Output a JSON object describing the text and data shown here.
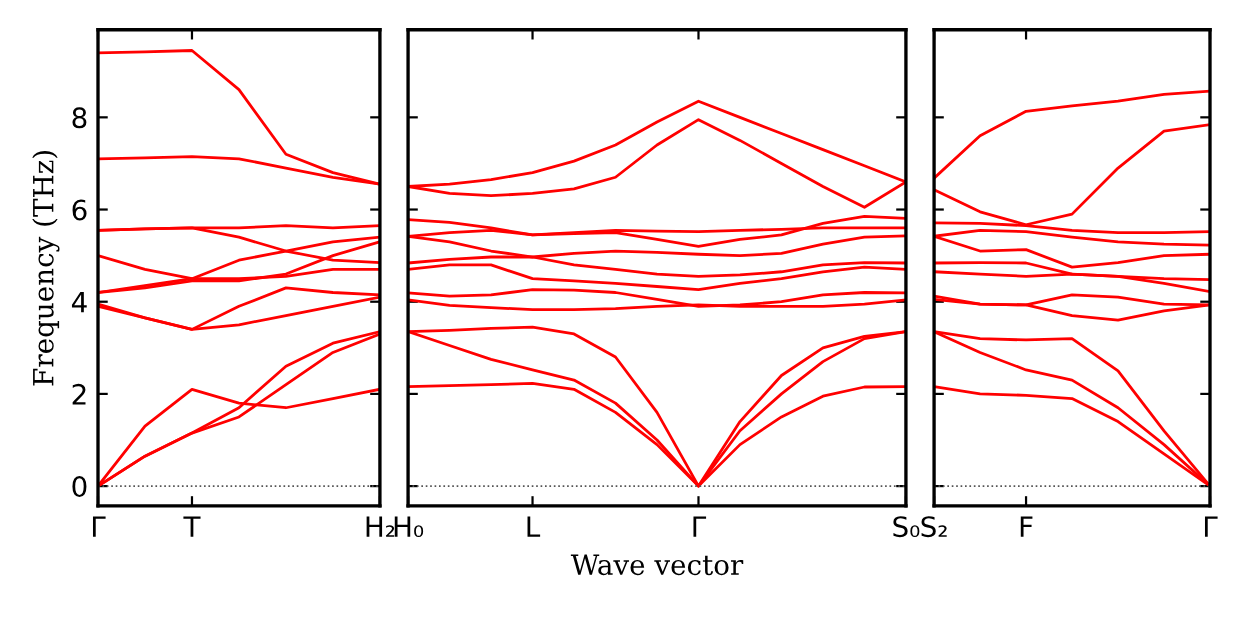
{
  "chart_data": [
    {
      "type": "line",
      "ylabel": "Frequency (THz)",
      "categories": [
        "Γ",
        null,
        "T",
        null,
        null,
        null,
        "H₂"
      ],
      "ylim": [
        -0.43,
        9.9
      ],
      "yticks": [
        0,
        2,
        4,
        6,
        8
      ],
      "ref_lines": [
        {
          "axis": "y",
          "value": 0,
          "color": "#555555",
          "line_style": "dotted"
        }
      ],
      "grid": false,
      "legend": false,
      "marker": "none",
      "line_style": "solid",
      "series": [
        {
          "color": "#ff0000",
          "values": [
            9.4,
            9.42,
            9.45,
            8.6,
            7.2,
            6.8,
            6.55
          ]
        },
        {
          "color": "#ff0000",
          "values": [
            7.1,
            7.12,
            7.15,
            7.1,
            6.9,
            6.7,
            6.55
          ]
        },
        {
          "color": "#ff0000",
          "values": [
            5.55,
            5.58,
            5.6,
            5.6,
            5.65,
            5.6,
            5.65
          ]
        },
        {
          "color": "#ff0000",
          "values": [
            5.55,
            5.58,
            5.6,
            5.4,
            5.1,
            4.9,
            4.85
          ]
        },
        {
          "color": "#ff0000",
          "values": [
            5.0,
            4.7,
            4.5,
            4.5,
            4.55,
            4.7,
            4.7
          ]
        },
        {
          "color": "#ff0000",
          "values": [
            4.2,
            4.35,
            4.5,
            4.9,
            5.1,
            5.3,
            5.4
          ]
        },
        {
          "color": "#ff0000",
          "values": [
            4.2,
            4.3,
            4.45,
            4.45,
            4.6,
            5.0,
            5.3
          ]
        },
        {
          "color": "#ff0000",
          "values": [
            3.95,
            3.65,
            3.4,
            3.9,
            4.3,
            4.2,
            4.15
          ]
        },
        {
          "color": "#ff0000",
          "values": [
            3.9,
            3.65,
            3.4,
            3.5,
            3.7,
            3.9,
            4.1
          ]
        },
        {
          "color": "#ff0000",
          "values": [
            0,
            1.3,
            2.1,
            1.8,
            1.7,
            1.9,
            2.1
          ]
        },
        {
          "color": "#ff0000",
          "values": [
            0,
            0.65,
            1.15,
            1.7,
            2.6,
            3.1,
            3.35
          ]
        },
        {
          "color": "#ff0000",
          "values": [
            0,
            0.65,
            1.15,
            1.5,
            2.2,
            2.9,
            3.3
          ]
        }
      ]
    },
    {
      "type": "line",
      "xlabel": "Wave vector",
      "categories": [
        "H₀",
        null,
        null,
        "L",
        null,
        null,
        null,
        "Γ",
        null,
        null,
        null,
        null,
        "S₀"
      ],
      "ylim": [
        -0.43,
        9.9
      ],
      "yticks": [
        0,
        2,
        4,
        6,
        8
      ],
      "tick_labels": "x",
      "ref_lines": [
        {
          "axis": "y",
          "value": 0,
          "color": "#555555",
          "line_style": "dotted"
        }
      ],
      "grid": false,
      "legend": false,
      "marker": "none",
      "line_style": "solid",
      "series": [
        {
          "color": "#ff0000",
          "values": [
            6.5,
            6.55,
            6.65,
            6.8,
            7.05,
            7.4,
            7.9,
            8.35,
            8.0,
            7.65,
            7.3,
            6.95,
            6.6
          ]
        },
        {
          "color": "#ff0000",
          "values": [
            6.5,
            6.35,
            6.3,
            6.35,
            6.45,
            6.7,
            7.4,
            7.95,
            7.5,
            7.0,
            6.5,
            6.05,
            6.6
          ]
        },
        {
          "color": "#ff0000",
          "values": [
            5.78,
            5.72,
            5.6,
            5.45,
            5.5,
            5.55,
            5.53,
            5.52,
            5.55,
            5.57,
            5.6,
            5.6,
            5.6
          ]
        },
        {
          "color": "#ff0000",
          "values": [
            5.42,
            5.5,
            5.55,
            5.45,
            5.48,
            5.5,
            5.35,
            5.2,
            5.35,
            5.45,
            5.7,
            5.85,
            5.81
          ]
        },
        {
          "color": "#ff0000",
          "values": [
            5.42,
            5.3,
            5.1,
            4.97,
            5.05,
            5.1,
            5.07,
            5.03,
            5.0,
            5.05,
            5.25,
            5.4,
            5.43
          ]
        },
        {
          "color": "#ff0000",
          "values": [
            4.84,
            4.92,
            4.97,
            4.97,
            4.8,
            4.7,
            4.6,
            4.55,
            4.58,
            4.65,
            4.8,
            4.85,
            4.84
          ]
        },
        {
          "color": "#ff0000",
          "values": [
            4.7,
            4.8,
            4.8,
            4.5,
            4.45,
            4.4,
            4.33,
            4.26,
            4.4,
            4.5,
            4.65,
            4.75,
            4.7
          ]
        },
        {
          "color": "#ff0000",
          "values": [
            4.19,
            4.12,
            4.15,
            4.26,
            4.25,
            4.2,
            4.05,
            3.9,
            3.93,
            4.0,
            4.15,
            4.2,
            4.19
          ]
        },
        {
          "color": "#ff0000",
          "values": [
            4.04,
            3.92,
            3.87,
            3.83,
            3.83,
            3.85,
            3.9,
            3.93,
            3.9,
            3.9,
            3.9,
            3.95,
            4.04
          ]
        },
        {
          "color": "#ff0000",
          "values": [
            3.35,
            3.38,
            3.42,
            3.45,
            3.3,
            2.8,
            1.6,
            0,
            1.4,
            2.4,
            3.0,
            3.25,
            3.35
          ]
        },
        {
          "color": "#ff0000",
          "values": [
            3.35,
            3.05,
            2.75,
            2.52,
            2.3,
            1.8,
            1.0,
            0,
            1.2,
            2.0,
            2.7,
            3.2,
            3.35
          ]
        },
        {
          "color": "#ff0000",
          "values": [
            2.16,
            2.18,
            2.2,
            2.23,
            2.1,
            1.6,
            0.9,
            0,
            0.9,
            1.5,
            1.95,
            2.15,
            2.16
          ]
        }
      ]
    },
    {
      "type": "line",
      "categories": [
        "S₂",
        null,
        "F",
        null,
        null,
        null,
        "Γ"
      ],
      "ylim": [
        -0.43,
        9.9
      ],
      "yticks": [
        0,
        2,
        4,
        6,
        8
      ],
      "tick_labels": "x",
      "ref_lines": [
        {
          "axis": "y",
          "value": 0,
          "color": "#555555",
          "line_style": "dotted"
        }
      ],
      "grid": false,
      "legend": false,
      "marker": "none",
      "line_style": "solid",
      "series": [
        {
          "color": "#ff0000",
          "values": [
            6.68,
            7.6,
            8.13,
            8.25,
            8.35,
            8.5,
            8.57
          ]
        },
        {
          "color": "#ff0000",
          "values": [
            6.43,
            5.95,
            5.67,
            5.9,
            6.9,
            7.7,
            7.84
          ]
        },
        {
          "color": "#ff0000",
          "values": [
            5.71,
            5.7,
            5.65,
            5.55,
            5.5,
            5.5,
            5.52
          ]
        },
        {
          "color": "#ff0000",
          "values": [
            5.42,
            5.55,
            5.52,
            5.4,
            5.3,
            5.25,
            5.23
          ]
        },
        {
          "color": "#ff0000",
          "values": [
            5.42,
            5.1,
            5.13,
            4.75,
            4.85,
            5.0,
            5.03
          ]
        },
        {
          "color": "#ff0000",
          "values": [
            4.84,
            4.85,
            4.84,
            4.6,
            4.55,
            4.4,
            4.22
          ]
        },
        {
          "color": "#ff0000",
          "values": [
            4.65,
            4.6,
            4.55,
            4.6,
            4.55,
            4.5,
            4.48
          ]
        },
        {
          "color": "#ff0000",
          "values": [
            4.12,
            3.95,
            3.93,
            4.15,
            4.1,
            3.95,
            3.93
          ]
        },
        {
          "color": "#ff0000",
          "values": [
            4.05,
            3.95,
            3.93,
            3.7,
            3.6,
            3.8,
            3.93
          ]
        },
        {
          "color": "#ff0000",
          "values": [
            3.35,
            3.2,
            3.17,
            3.2,
            2.5,
            1.2,
            0
          ]
        },
        {
          "color": "#ff0000",
          "values": [
            3.35,
            2.9,
            2.52,
            2.3,
            1.7,
            0.9,
            0
          ]
        },
        {
          "color": "#ff0000",
          "values": [
            2.16,
            2.0,
            1.97,
            1.9,
            1.4,
            0.7,
            0
          ]
        }
      ]
    }
  ]
}
